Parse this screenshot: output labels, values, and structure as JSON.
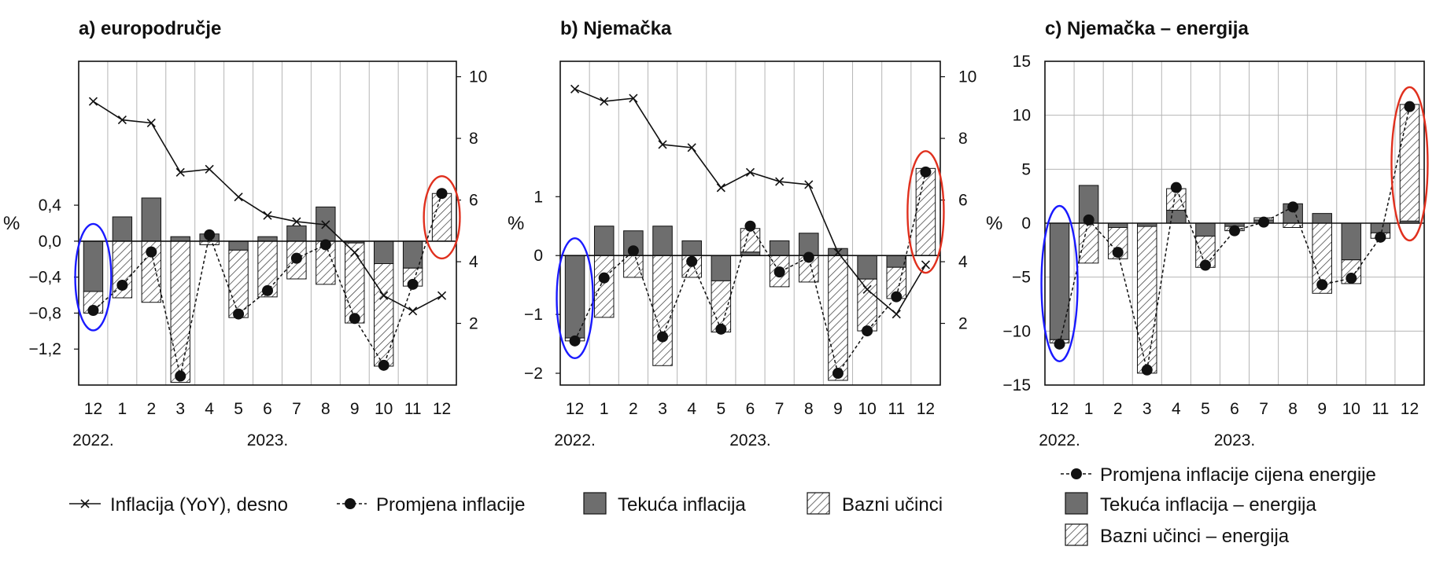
{
  "colors": {
    "current": "#6e6e6e",
    "base_hatch": "#333333",
    "line": "#111111",
    "grid": "#b5b5b5",
    "highlight_blue": "#1a1aff",
    "highlight_red": "#e0301e"
  },
  "chart_data": [
    {
      "id": "a",
      "title": "a) europodručje",
      "type": "bar",
      "stacked": true,
      "categories": [
        "12",
        "1",
        "2",
        "3",
        "4",
        "5",
        "6",
        "7",
        "8",
        "9",
        "10",
        "11",
        "12"
      ],
      "year_labels": [
        {
          "index": 0,
          "text": "2022."
        },
        {
          "index": 6,
          "text": "2023."
        }
      ],
      "left_unit": "%",
      "left_ticks": [
        "0,4",
        "0,0",
        "−0,4",
        "−0,8",
        "−1,2"
      ],
      "left_tick_values": [
        0.4,
        0.0,
        -0.4,
        -0.8,
        -1.2
      ],
      "right_ticks": [
        "10",
        "8",
        "6",
        "4",
        "2"
      ],
      "right_tick_values": [
        10,
        8,
        6,
        4,
        2
      ],
      "grid": "vertical",
      "series": [
        {
          "name": "Tekuća inflacija",
          "type": "bar",
          "values": [
            -0.56,
            0.27,
            0.48,
            0.05,
            0.08,
            -0.1,
            0.05,
            0.17,
            0.38,
            -0.02,
            -0.25,
            -0.3,
            0.0
          ]
        },
        {
          "name": "Bazni učinci",
          "type": "bar",
          "values": [
            -0.24,
            -0.63,
            -0.68,
            -1.57,
            -0.04,
            -0.75,
            -0.62,
            -0.42,
            -0.48,
            -0.89,
            -1.14,
            -0.2,
            0.53
          ]
        },
        {
          "name": "Promjena inflacije",
          "type": "line-dashed",
          "values": [
            -0.77,
            -0.49,
            -0.12,
            -1.5,
            0.07,
            -0.81,
            -0.55,
            -0.19,
            -0.04,
            -0.86,
            -1.38,
            -0.48,
            0.53
          ]
        },
        {
          "name": "Inflacija (YoY), desno",
          "type": "line",
          "axis": "right",
          "values": [
            9.2,
            8.6,
            8.5,
            6.9,
            7.0,
            6.1,
            5.5,
            5.3,
            5.2,
            4.3,
            2.9,
            2.4,
            2.9
          ]
        }
      ],
      "ylim": [
        -1.6,
        2.0
      ],
      "ylim_right": [
        0,
        10.5
      ],
      "highlights": [
        {
          "index": 0,
          "color": "blue"
        },
        {
          "index": 12,
          "color": "red"
        }
      ]
    },
    {
      "id": "b",
      "title": "b) Njemačka",
      "type": "bar",
      "stacked": true,
      "categories": [
        "12",
        "1",
        "2",
        "3",
        "4",
        "5",
        "6",
        "7",
        "8",
        "9",
        "10",
        "11",
        "12"
      ],
      "year_labels": [
        {
          "index": 0,
          "text": "2022."
        },
        {
          "index": 6,
          "text": "2023."
        }
      ],
      "left_unit": "%",
      "left_ticks": [
        "1",
        "0",
        "−1",
        "−2"
      ],
      "left_tick_values": [
        1,
        0,
        -1,
        -2
      ],
      "right_ticks": [
        "10",
        "8",
        "6",
        "4",
        "2"
      ],
      "right_tick_values": [
        10,
        8,
        6,
        4,
        2
      ],
      "grid": "vertical",
      "series": [
        {
          "name": "Tekuća inflacija",
          "type": "bar",
          "values": [
            -1.4,
            0.5,
            0.42,
            0.5,
            0.25,
            -0.43,
            0.06,
            0.25,
            0.38,
            0.12,
            -0.4,
            -0.2,
            0.0
          ]
        },
        {
          "name": "Bazni učinci",
          "type": "bar",
          "values": [
            -0.05,
            -1.05,
            -0.37,
            -1.87,
            -0.37,
            -0.87,
            0.4,
            -0.53,
            -0.45,
            -2.12,
            -0.88,
            -0.53,
            1.48
          ]
        },
        {
          "name": "Promjena inflacije",
          "type": "line-dashed",
          "values": [
            -1.45,
            -0.38,
            0.08,
            -1.38,
            -0.1,
            -1.25,
            0.5,
            -0.28,
            -0.03,
            -2.0,
            -1.28,
            -0.7,
            1.42
          ]
        },
        {
          "name": "Inflacija (YoY), desno",
          "type": "line",
          "axis": "right",
          "values": [
            9.6,
            9.2,
            9.3,
            7.8,
            7.7,
            6.4,
            6.9,
            6.6,
            6.5,
            4.3,
            3.1,
            2.3,
            3.9
          ]
        }
      ],
      "ylim": [
        -2.2,
        3.3
      ],
      "ylim_right": [
        0,
        10.5
      ],
      "highlights": [
        {
          "index": 0,
          "color": "blue"
        },
        {
          "index": 12,
          "color": "red"
        }
      ]
    },
    {
      "id": "c",
      "title": "c) Njemačka – energija",
      "type": "bar",
      "stacked": true,
      "categories": [
        "12",
        "1",
        "2",
        "3",
        "4",
        "5",
        "6",
        "7",
        "8",
        "9",
        "10",
        "11",
        "12"
      ],
      "year_labels": [
        {
          "index": 0,
          "text": "2022."
        },
        {
          "index": 6,
          "text": "2023."
        }
      ],
      "left_unit": "%",
      "left_ticks": [
        "15",
        "10",
        "5",
        "0",
        "−5",
        "−10",
        "−15"
      ],
      "left_tick_values": [
        15,
        10,
        5,
        0,
        -5,
        -10,
        -15
      ],
      "grid": "both",
      "series": [
        {
          "name": "Tekuća inflacija – energija",
          "type": "bar",
          "values": [
            -10.8,
            3.5,
            -0.4,
            -0.3,
            1.2,
            -1.2,
            -0.3,
            0.3,
            1.8,
            0.9,
            -3.4,
            -0.9,
            0.2
          ]
        },
        {
          "name": "Bazni učinci – energija",
          "type": "bar",
          "values": [
            -0.3,
            -3.7,
            -2.9,
            -13.6,
            2.0,
            -2.9,
            -0.4,
            0.2,
            -0.4,
            -6.5,
            -2.2,
            -0.5,
            10.8
          ]
        },
        {
          "name": "Promjena inflacije cijena energije",
          "type": "line-dashed",
          "values": [
            -11.2,
            0.3,
            -2.7,
            -13.6,
            3.3,
            -3.9,
            -0.7,
            0.1,
            1.5,
            -5.7,
            -5.1,
            -1.3,
            10.8
          ]
        }
      ],
      "ylim": [
        -15,
        15
      ],
      "highlights": [
        {
          "index": 0,
          "color": "blue"
        },
        {
          "index": 12,
          "color": "red"
        }
      ]
    }
  ],
  "legend_main": [
    {
      "key": "line_x",
      "label": "Inflacija (YoY), desno"
    },
    {
      "key": "line_dot",
      "label": "Promjena inflacije"
    },
    {
      "key": "bar_solid",
      "label": "Tekuća inflacija"
    },
    {
      "key": "bar_hatch",
      "label": "Bazni učinci"
    }
  ],
  "legend_energy": [
    {
      "key": "line_dot",
      "label": "Promjena inflacije cijena energije"
    },
    {
      "key": "bar_solid",
      "label": "Tekuća inflacija – energija"
    },
    {
      "key": "bar_hatch",
      "label": "Bazni učinci – energija"
    }
  ]
}
